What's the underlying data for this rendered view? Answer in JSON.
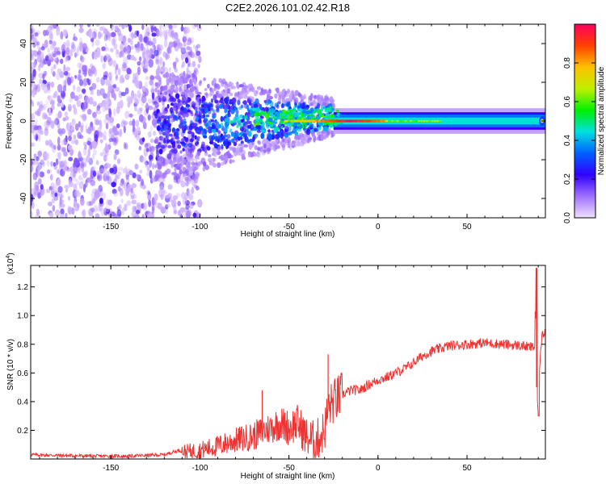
{
  "title": "C2E2.2026.101.02.42.R18",
  "chart_data": [
    {
      "type": "heatmap",
      "xlabel": "Height of straight line (km)",
      "ylabel": "Frequency (Hz)",
      "xlim": [
        -195,
        94
      ],
      "ylim": [
        -50,
        50
      ],
      "x_ticks": [
        -150,
        -100,
        -50,
        0,
        50
      ],
      "y_ticks": [
        -40,
        -20,
        0,
        20,
        40
      ],
      "colorbar": {
        "label": "Normalized spectral amplitude",
        "range": [
          0,
          1
        ],
        "ticks": [
          0.0,
          0.2,
          0.4,
          0.6,
          0.8
        ],
        "tick_labels": [
          "0.0",
          "0.2",
          "0.4",
          "0.6",
          "0.8"
        ],
        "colors": [
          "#f0e0ff",
          "#a070ff",
          "#3000ff",
          "#0060ff",
          "#00e0e0",
          "#00f000",
          "#c0f000",
          "#ffc000",
          "#ff4000",
          "#ff0060"
        ]
      },
      "features": [
        {
          "region": "noise",
          "x_range": [
            -195,
            -100
          ],
          "freq_range": [
            -50,
            50
          ],
          "amplitude": 0.15
        },
        {
          "region": "narrowing_band",
          "x_range": [
            -125,
            -25
          ],
          "center_freq": 0,
          "half_width_start": 12,
          "half_width_end": 4
        },
        {
          "region": "steady_band",
          "x_range": [
            -25,
            94
          ],
          "center_freq": 0,
          "half_width": 3,
          "amplitude": 0.45
        },
        {
          "region": "peak_line",
          "x_range": [
            -52,
            5
          ],
          "center_freq": 0,
          "amplitude": 0.95
        }
      ]
    },
    {
      "type": "line",
      "xlabel": "Height of straight line (km)",
      "ylabel": "SNR (10 * v/v)",
      "y_scale_label": "(x10",
      "y_scale_exp": "4",
      "y_scale_close": ")",
      "xlim": [
        -195,
        94
      ],
      "ylim": [
        0,
        1.35
      ],
      "x_ticks": [
        -150,
        -100,
        -50,
        0,
        50
      ],
      "y_ticks": [
        0.2,
        0.4,
        0.6,
        0.8,
        1.0,
        1.2
      ],
      "y_tick_labels": [
        "0.2",
        "0.4",
        "0.6",
        "0.8",
        "1.0",
        "1.2"
      ],
      "color": "#ee3333",
      "series": [
        {
          "name": "SNR",
          "x": [
            -195,
            -180,
            -160,
            -140,
            -120,
            -112,
            -108,
            -100,
            -90,
            -80,
            -70,
            -60,
            -55,
            -50,
            -45,
            -40,
            -35,
            -30,
            -28,
            -25,
            -20,
            -15,
            -10,
            -5,
            0,
            5,
            10,
            15,
            20,
            25,
            30,
            40,
            50,
            60,
            70,
            80,
            85,
            88,
            89,
            90,
            91,
            92,
            94
          ],
          "y": [
            0.03,
            0.025,
            0.02,
            0.02,
            0.03,
            0.06,
            0.05,
            0.06,
            0.09,
            0.13,
            0.16,
            0.22,
            0.25,
            0.22,
            0.25,
            0.15,
            0.12,
            0.2,
            0.35,
            0.4,
            0.45,
            0.48,
            0.48,
            0.52,
            0.55,
            0.57,
            0.6,
            0.63,
            0.67,
            0.72,
            0.75,
            0.79,
            0.8,
            0.81,
            0.8,
            0.79,
            0.78,
            0.78,
            0.5,
            0.3,
            0.7,
            0.85,
            0.9
          ]
        }
      ],
      "annotations": [
        {
          "x": -65,
          "y": 0.48,
          "label": "spike"
        },
        {
          "x": -28,
          "y": 0.73,
          "label": "spike"
        },
        {
          "x": 89,
          "y": 1.33,
          "label": "spike"
        }
      ]
    }
  ]
}
